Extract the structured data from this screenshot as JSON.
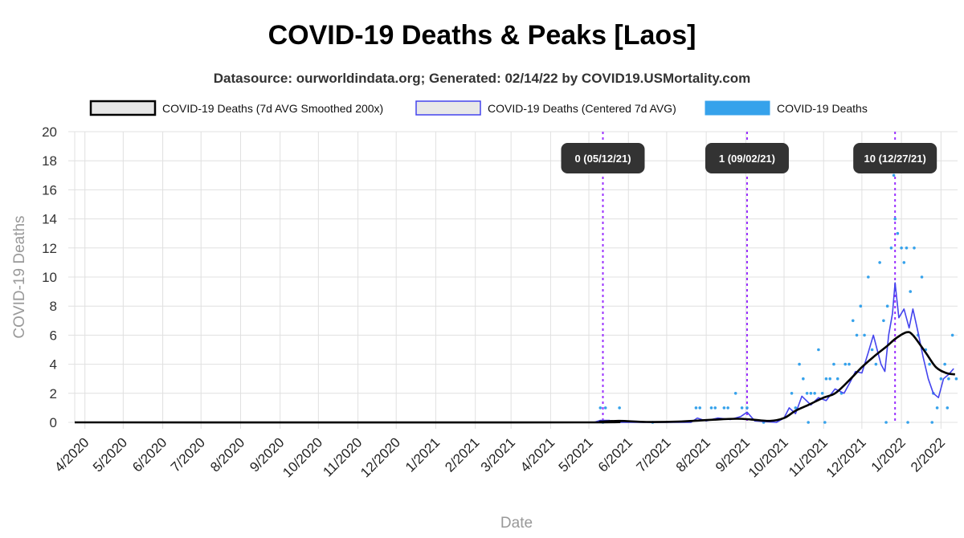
{
  "chart_data": {
    "type": "line",
    "title": "COVID-19 Deaths & Peaks [Laos]",
    "subtitle": "Datasource: ourworldindata.org; Generated: 02/14/22 by COVID19.USMortality.com",
    "xlabel": "Date",
    "ylabel": "COVID-19 Deaths",
    "ylim": [
      0,
      20
    ],
    "yticks": [
      0,
      2,
      4,
      6,
      8,
      10,
      12,
      14,
      16,
      18,
      20
    ],
    "xlim": [
      "2020-03-24",
      "2022-02-14"
    ],
    "xticks": [
      {
        "date": "2020-04-01",
        "label": "4/2020"
      },
      {
        "date": "2020-05-01",
        "label": "5/2020"
      },
      {
        "date": "2020-06-01",
        "label": "6/2020"
      },
      {
        "date": "2020-07-01",
        "label": "7/2020"
      },
      {
        "date": "2020-08-01",
        "label": "8/2020"
      },
      {
        "date": "2020-09-01",
        "label": "9/2020"
      },
      {
        "date": "2020-10-01",
        "label": "10/2020"
      },
      {
        "date": "2020-11-01",
        "label": "11/2020"
      },
      {
        "date": "2020-12-01",
        "label": "12/2020"
      },
      {
        "date": "2021-01-01",
        "label": "1/2021"
      },
      {
        "date": "2021-02-01",
        "label": "2/2021"
      },
      {
        "date": "2021-03-01",
        "label": "3/2021"
      },
      {
        "date": "2021-04-01",
        "label": "4/2021"
      },
      {
        "date": "2021-05-01",
        "label": "5/2021"
      },
      {
        "date": "2021-06-01",
        "label": "6/2021"
      },
      {
        "date": "2021-07-01",
        "label": "7/2021"
      },
      {
        "date": "2021-08-01",
        "label": "8/2021"
      },
      {
        "date": "2021-09-01",
        "label": "9/2021"
      },
      {
        "date": "2021-10-01",
        "label": "10/2021"
      },
      {
        "date": "2021-11-01",
        "label": "11/2021"
      },
      {
        "date": "2021-12-01",
        "label": "12/2021"
      },
      {
        "date": "2022-01-01",
        "label": "1/2022"
      },
      {
        "date": "2022-02-01",
        "label": "2/2022"
      }
    ],
    "grid": true,
    "legend_position": "top",
    "legend": [
      {
        "label": "COVID-19 Deaths (7d AVG Smoothed 200x)",
        "style": "smoothed"
      },
      {
        "label": "COVID-19 Deaths (Centered 7d AVG)",
        "style": "avg"
      },
      {
        "label": "COVID-19 Deaths",
        "style": "daily"
      }
    ],
    "colors": {
      "smoothed": "#000000",
      "avg": "#4444ee",
      "daily": "#36a2eb",
      "peak_line": "#9b30ff",
      "peak_label_bg": "#333333",
      "grid": "#e0e0e0"
    },
    "peaks": [
      {
        "date": "2021-05-12",
        "label": "0 (05/12/21)"
      },
      {
        "date": "2021-09-02",
        "label": "1 (09/02/21)"
      },
      {
        "date": "2021-12-27",
        "label": "10 (12/27/21)"
      }
    ],
    "series": [
      {
        "name": "COVID-19 Deaths (7d AVG Smoothed 200x)",
        "style": "smoothed",
        "points": [
          [
            "2020-03-24",
            0
          ],
          [
            "2021-04-20",
            0
          ],
          [
            "2021-05-10",
            0.05
          ],
          [
            "2021-05-25",
            0.1
          ],
          [
            "2021-06-15",
            0.03
          ],
          [
            "2021-07-10",
            0.05
          ],
          [
            "2021-07-25",
            0.12
          ],
          [
            "2021-08-10",
            0.2
          ],
          [
            "2021-08-25",
            0.25
          ],
          [
            "2021-09-05",
            0.2
          ],
          [
            "2021-09-20",
            0.1
          ],
          [
            "2021-10-01",
            0.3
          ],
          [
            "2021-10-10",
            0.8
          ],
          [
            "2021-10-20",
            1.2
          ],
          [
            "2021-11-01",
            1.7
          ],
          [
            "2021-11-10",
            2.0
          ],
          [
            "2021-11-20",
            2.8
          ],
          [
            "2021-12-01",
            3.8
          ],
          [
            "2021-12-10",
            4.5
          ],
          [
            "2021-12-20",
            5.2
          ],
          [
            "2021-12-28",
            5.8
          ],
          [
            "2022-01-05",
            6.2
          ],
          [
            "2022-01-10",
            6.0
          ],
          [
            "2022-01-20",
            4.8
          ],
          [
            "2022-01-28",
            3.8
          ],
          [
            "2022-02-05",
            3.4
          ],
          [
            "2022-02-12",
            3.3
          ]
        ]
      },
      {
        "name": "COVID-19 Deaths (Centered 7d AVG)",
        "style": "avg",
        "points": [
          [
            "2020-03-24",
            0
          ],
          [
            "2021-05-05",
            0
          ],
          [
            "2021-05-10",
            0.14
          ],
          [
            "2021-05-17",
            0.14
          ],
          [
            "2021-05-20",
            0
          ],
          [
            "2021-07-20",
            0
          ],
          [
            "2021-07-25",
            0.3
          ],
          [
            "2021-08-01",
            0.1
          ],
          [
            "2021-08-10",
            0.3
          ],
          [
            "2021-08-20",
            0.2
          ],
          [
            "2021-08-28",
            0.4
          ],
          [
            "2021-09-02",
            0.7
          ],
          [
            "2021-09-08",
            0.1
          ],
          [
            "2021-09-25",
            0
          ],
          [
            "2021-10-01",
            0.3
          ],
          [
            "2021-10-05",
            1.0
          ],
          [
            "2021-10-10",
            0.6
          ],
          [
            "2021-10-15",
            1.8
          ],
          [
            "2021-10-22",
            1.2
          ],
          [
            "2021-10-28",
            1.7
          ],
          [
            "2021-11-03",
            1.5
          ],
          [
            "2021-11-10",
            2.3
          ],
          [
            "2021-11-17",
            2.0
          ],
          [
            "2021-11-22",
            2.8
          ],
          [
            "2021-11-26",
            3.5
          ],
          [
            "2021-12-01",
            3.4
          ],
          [
            "2021-12-06",
            4.8
          ],
          [
            "2021-12-10",
            6.0
          ],
          [
            "2021-12-13",
            5.0
          ],
          [
            "2021-12-16",
            4.0
          ],
          [
            "2021-12-19",
            3.5
          ],
          [
            "2021-12-22",
            6.0
          ],
          [
            "2021-12-25",
            7.5
          ],
          [
            "2021-12-27",
            9.6
          ],
          [
            "2021-12-30",
            7.2
          ],
          [
            "2022-01-03",
            7.8
          ],
          [
            "2022-01-07",
            6.5
          ],
          [
            "2022-01-10",
            7.8
          ],
          [
            "2022-01-14",
            6.2
          ],
          [
            "2022-01-18",
            4.5
          ],
          [
            "2022-01-22",
            3.0
          ],
          [
            "2022-01-26",
            2.0
          ],
          [
            "2022-01-30",
            1.7
          ],
          [
            "2022-02-03",
            3.0
          ],
          [
            "2022-02-07",
            3.3
          ],
          [
            "2022-02-11",
            3.7
          ]
        ]
      },
      {
        "name": "COVID-19 Deaths",
        "style": "daily",
        "points": [
          [
            "2021-05-10",
            1
          ],
          [
            "2021-05-14",
            1
          ],
          [
            "2021-05-25",
            1
          ],
          [
            "2021-07-24",
            1
          ],
          [
            "2021-07-27",
            1
          ],
          [
            "2021-08-05",
            1
          ],
          [
            "2021-08-08",
            1
          ],
          [
            "2021-08-15",
            1
          ],
          [
            "2021-08-18",
            1
          ],
          [
            "2021-08-24",
            2
          ],
          [
            "2021-08-29",
            1
          ],
          [
            "2021-09-02",
            1
          ],
          [
            "2021-10-07",
            2
          ],
          [
            "2021-10-10",
            1
          ],
          [
            "2021-10-13",
            4
          ],
          [
            "2021-10-16",
            3
          ],
          [
            "2021-10-19",
            2
          ],
          [
            "2021-10-22",
            2
          ],
          [
            "2021-10-25",
            2
          ],
          [
            "2021-10-28",
            5
          ],
          [
            "2021-10-31",
            2
          ],
          [
            "2021-11-03",
            3
          ],
          [
            "2021-11-06",
            3
          ],
          [
            "2021-11-09",
            4
          ],
          [
            "2021-11-12",
            3
          ],
          [
            "2021-11-15",
            2
          ],
          [
            "2021-11-18",
            4
          ],
          [
            "2021-11-21",
            4
          ],
          [
            "2021-11-24",
            7
          ],
          [
            "2021-11-27",
            6
          ],
          [
            "2021-11-30",
            8
          ],
          [
            "2021-12-03",
            6
          ],
          [
            "2021-12-06",
            10
          ],
          [
            "2021-12-09",
            5
          ],
          [
            "2021-12-12",
            4
          ],
          [
            "2021-12-15",
            11
          ],
          [
            "2021-12-18",
            7
          ],
          [
            "2021-12-21",
            8
          ],
          [
            "2021-12-24",
            12
          ],
          [
            "2021-12-26",
            17
          ],
          [
            "2021-12-27",
            14
          ],
          [
            "2021-12-29",
            13
          ],
          [
            "2022-01-01",
            12
          ],
          [
            "2022-01-03",
            11
          ],
          [
            "2022-01-05",
            12
          ],
          [
            "2022-01-08",
            9
          ],
          [
            "2022-01-11",
            12
          ],
          [
            "2022-01-14",
            6
          ],
          [
            "2022-01-17",
            10
          ],
          [
            "2022-01-20",
            5
          ],
          [
            "2022-01-23",
            4
          ],
          [
            "2022-01-26",
            2
          ],
          [
            "2022-01-29",
            1
          ],
          [
            "2022-02-01",
            3
          ],
          [
            "2022-02-04",
            4
          ],
          [
            "2022-02-07",
            3
          ],
          [
            "2022-02-10",
            6
          ],
          [
            "2022-02-13",
            3
          ],
          [
            "2021-05-12",
            0
          ],
          [
            "2021-06-20",
            0
          ],
          [
            "2021-09-15",
            0
          ],
          [
            "2021-10-20",
            0
          ],
          [
            "2021-11-02",
            0
          ],
          [
            "2021-12-20",
            0
          ],
          [
            "2022-01-06",
            0
          ],
          [
            "2022-01-25",
            0
          ],
          [
            "2022-02-06",
            1
          ]
        ]
      }
    ]
  }
}
